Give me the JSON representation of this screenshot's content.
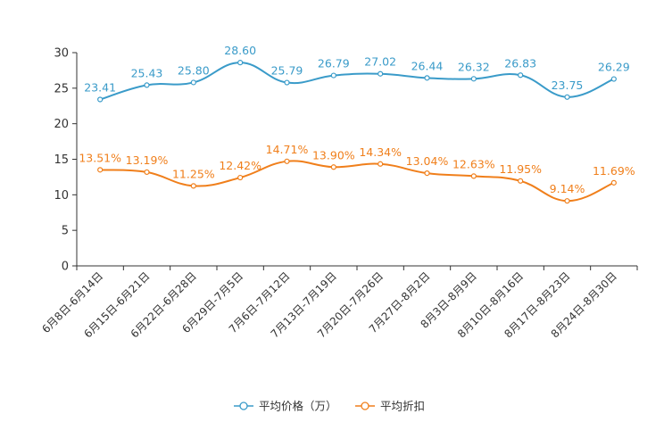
{
  "chart_data": {
    "type": "line",
    "title": "",
    "xlabel": "",
    "ylabel": "",
    "ylim": [
      0,
      30
    ],
    "y_ticks": [
      "0",
      "5",
      "10",
      "15",
      "20",
      "25",
      "30"
    ],
    "grid": false,
    "legend_position": "bottom-center",
    "categories": [
      "6月8日-6月14日",
      "6月15日-6月21日",
      "6月22日-6月28日",
      "6月29日-7月5日",
      "7月6日-7月12日",
      "7月13日-7月19日",
      "7月20日-7月26日",
      "7月27日-8月2日",
      "8月3日-8月9日",
      "8月10日-8月16日",
      "8月17日-8月23日",
      "8月24日-8月30日"
    ],
    "series": [
      {
        "name": "平均价格（万）",
        "color": "#3a9bc9",
        "values": [
          23.41,
          25.43,
          25.8,
          28.6,
          25.79,
          26.79,
          27.02,
          26.44,
          26.32,
          26.83,
          23.75,
          26.29
        ],
        "labels": [
          "23.41",
          "25.43",
          "25.80",
          "28.60",
          "25.79",
          "26.79",
          "27.02",
          "26.44",
          "26.32",
          "26.83",
          "23.75",
          "26.29"
        ]
      },
      {
        "name": "平均折扣",
        "color": "#f07f1b",
        "values": [
          13.51,
          13.19,
          11.25,
          12.42,
          14.71,
          13.9,
          14.34,
          13.04,
          12.63,
          11.95,
          9.14,
          11.69
        ],
        "labels": [
          "13.51%",
          "13.19%",
          "11.25%",
          "12.42%",
          "14.71%",
          "13.90%",
          "14.34%",
          "13.04%",
          "12.63%",
          "11.95%",
          "9.14%",
          "11.69%"
        ]
      }
    ]
  }
}
